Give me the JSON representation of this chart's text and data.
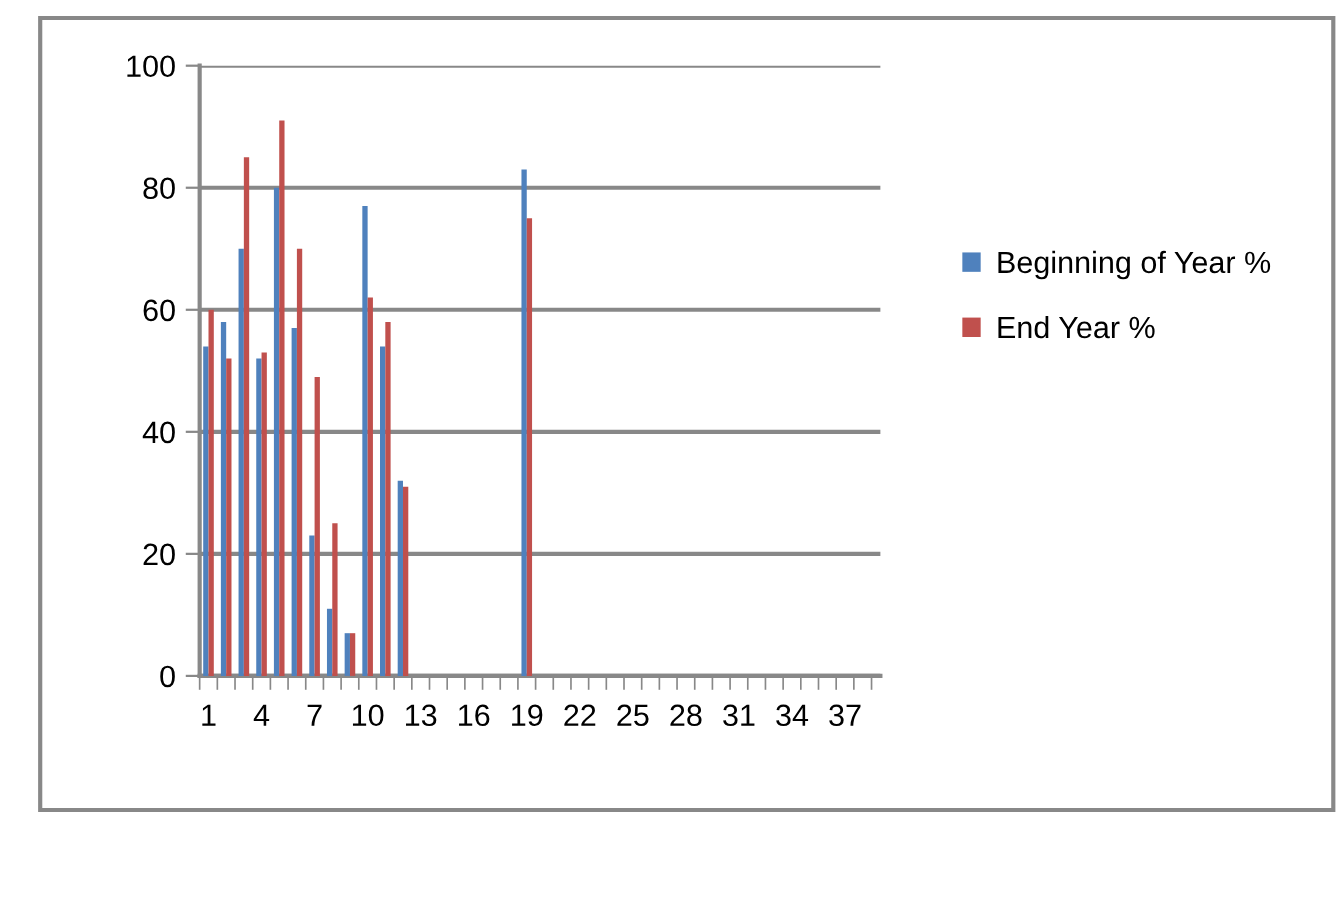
{
  "chart_data": {
    "type": "bar",
    "categories": [
      "1",
      null,
      null,
      "4",
      null,
      null,
      "7",
      null,
      null,
      "10",
      null,
      null,
      "13",
      null,
      null,
      "16",
      null,
      null,
      "19",
      null,
      null,
      "22",
      null,
      null,
      "25",
      null,
      null,
      "28",
      null,
      null,
      "31",
      null,
      null,
      "34",
      null,
      null,
      "37",
      null
    ],
    "series": [
      {
        "name": "Beginning of Year %",
        "color": "#4f81bd",
        "values": [
          54,
          58,
          70,
          52,
          80,
          57,
          23,
          11,
          7,
          77,
          54,
          32,
          null,
          null,
          null,
          null,
          null,
          null,
          83,
          null,
          null,
          null,
          null,
          null,
          null,
          null,
          null,
          null,
          null,
          null,
          null,
          null,
          null,
          null,
          null,
          null,
          null,
          null
        ]
      },
      {
        "name": "End Year %",
        "color": "#c0504d",
        "values": [
          60,
          52,
          85,
          53,
          91,
          70,
          49,
          25,
          7,
          62,
          58,
          31,
          null,
          null,
          null,
          null,
          null,
          null,
          75,
          null,
          null,
          null,
          null,
          null,
          null,
          null,
          null,
          null,
          null,
          null,
          null,
          null,
          null,
          null,
          null,
          null,
          null,
          null
        ]
      }
    ],
    "ylim": [
      0,
      100
    ],
    "yticks": [
      0,
      20,
      40,
      60,
      80,
      100
    ],
    "grid": "y",
    "legend": "right"
  }
}
